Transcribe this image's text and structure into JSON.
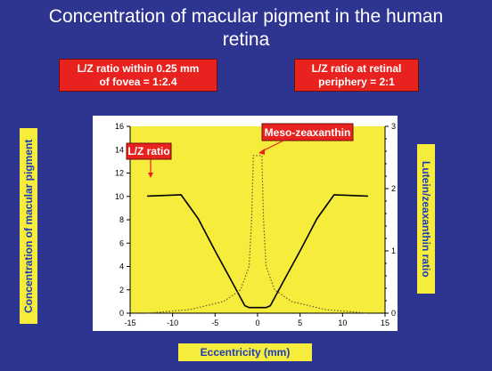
{
  "slide": {
    "title_line1": "Concentration of macular pigment in the human",
    "title_line2": "retina",
    "callout_left_line1": "L/Z ratio within 0.25 mm",
    "callout_left_line2": "of fovea = 1:2.4",
    "callout_right_line1": "L/Z ratio at retinal",
    "callout_right_line2": "periphery = 2:1"
  },
  "colors": {
    "background": "#2d3590",
    "plot_area": "#f5ec3c",
    "callout": "#e8231f",
    "axis_label_text": "#1d3bbd"
  },
  "chart_data": {
    "type": "line",
    "xlabel": "Eccentricity (mm)",
    "ylabel": "Concentration of macular pigment",
    "ylabel_right": "Lutein/zeaxanthin ratio",
    "xlim": [
      -15,
      15
    ],
    "ylim": [
      0,
      16
    ],
    "ylim_right": [
      0,
      3
    ],
    "xticks": [
      "-15",
      "-10",
      "-5",
      "0",
      "5",
      "10",
      "15"
    ],
    "yticks": [
      "0",
      "2",
      "4",
      "6",
      "8",
      "10",
      "12",
      "14",
      "16"
    ],
    "yticks_right": [
      "0",
      "1",
      "2",
      "3"
    ],
    "grid": false,
    "series": [
      {
        "name": "L/Z ratio",
        "style": "solid",
        "axis": "right",
        "x": [
          -13,
          -9,
          -7,
          -5,
          -3,
          -1.5,
          -1,
          0,
          1,
          1.5,
          3,
          5,
          7,
          9,
          13
        ],
        "y": [
          1.88,
          1.9,
          1.52,
          1.0,
          0.5,
          0.12,
          0.09,
          0.09,
          0.09,
          0.12,
          0.5,
          1.0,
          1.52,
          1.9,
          1.88
        ]
      },
      {
        "name": "Meso-zeaxanthin",
        "style": "dotted",
        "axis": "left",
        "x": [
          -13,
          -8,
          -4,
          -2,
          -1,
          -0.7,
          -0.5,
          0.5,
          0.7,
          1,
          2,
          4,
          8,
          13
        ],
        "y": [
          0,
          0.3,
          1.0,
          2.0,
          4.0,
          8.0,
          13.5,
          13.5,
          8.0,
          4.0,
          2.0,
          1.0,
          0.3,
          0
        ]
      }
    ],
    "annotations": [
      "L/Z ratio",
      "Meso-zeaxanthin"
    ]
  }
}
